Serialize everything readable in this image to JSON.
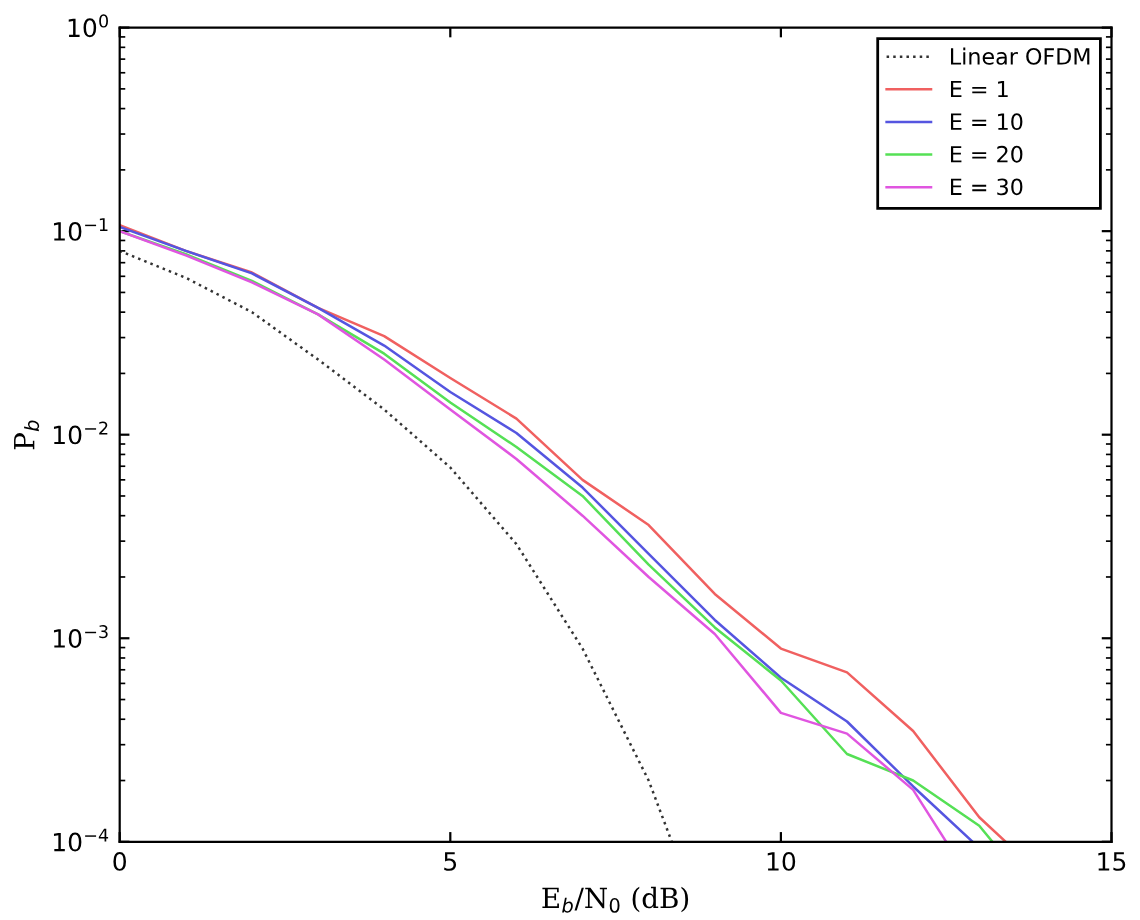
{
  "chart_data": {
    "type": "line",
    "xlabel": "E$_{b}$/N$_{0}$ (dB)",
    "ylabel": "P$_{b}$",
    "log": "y",
    "grid": false,
    "legend": "top right",
    "xlim": [
      0,
      15
    ],
    "xticks": [
      0,
      5,
      10,
      15
    ],
    "ylim": [
      0.0001,
      1
    ],
    "yticks": [
      {
        "value": 0.0001,
        "label": "10$^{−4}$"
      },
      {
        "value": 0.001,
        "label": "10$^{−3}$"
      },
      {
        "value": 0.01,
        "label": "10$^{−2}$"
      },
      {
        "value": 0.1,
        "label": "10$^{−1}$"
      },
      {
        "value": 1,
        "label": "10$^{0}$"
      }
    ],
    "series": [
      {
        "name": "Linear OFDM",
        "color": "#333333",
        "line_style": "dotted",
        "x": [
          0,
          1,
          2,
          3,
          4,
          5,
          6,
          7,
          8,
          8.35
        ],
        "values": [
          0.08,
          0.059,
          0.04,
          0.0234,
          0.0133,
          0.0069,
          0.0029,
          0.00089,
          0.0002,
          0.0001
        ]
      },
      {
        "name": "E = 1",
        "color": "#f06060",
        "line_style": "solid",
        "x": [
          0,
          1,
          2,
          3,
          4,
          5,
          6,
          7,
          8,
          9,
          10,
          11,
          12,
          13,
          13.4
        ],
        "values": [
          0.107,
          0.08,
          0.0626,
          0.042,
          0.0305,
          0.019,
          0.012,
          0.006,
          0.0036,
          0.00165,
          0.00089,
          0.00068,
          0.00035,
          0.000132,
          0.0001
        ]
      },
      {
        "name": "E = 10",
        "color": "#5555e0",
        "line_style": "solid",
        "x": [
          0,
          1,
          2,
          3,
          4,
          5,
          6,
          7,
          8,
          9,
          10,
          11,
          12,
          12.9
        ],
        "values": [
          0.105,
          0.08,
          0.062,
          0.042,
          0.0274,
          0.0162,
          0.0102,
          0.0055,
          0.0026,
          0.00123,
          0.00064,
          0.00039,
          0.000187,
          0.0001
        ]
      },
      {
        "name": "E = 20",
        "color": "#55e055",
        "line_style": "solid",
        "x": [
          0,
          1,
          2,
          3,
          4,
          5,
          6,
          7,
          8,
          9,
          10,
          11,
          12,
          13,
          13.2
        ],
        "values": [
          0.1,
          0.077,
          0.057,
          0.039,
          0.025,
          0.0144,
          0.0087,
          0.005,
          0.0023,
          0.00113,
          0.00062,
          0.00027,
          0.0002,
          0.00012,
          0.0001
        ]
      },
      {
        "name": "E = 30",
        "color": "#e055e0",
        "line_style": "solid",
        "x": [
          0,
          1,
          2,
          3,
          4,
          5,
          6,
          7,
          8,
          9,
          10,
          11,
          12,
          12.5
        ],
        "values": [
          0.1,
          0.076,
          0.056,
          0.039,
          0.0234,
          0.0133,
          0.0076,
          0.004,
          0.002,
          0.00105,
          0.00043,
          0.00034,
          0.00018,
          0.0001
        ]
      }
    ]
  }
}
